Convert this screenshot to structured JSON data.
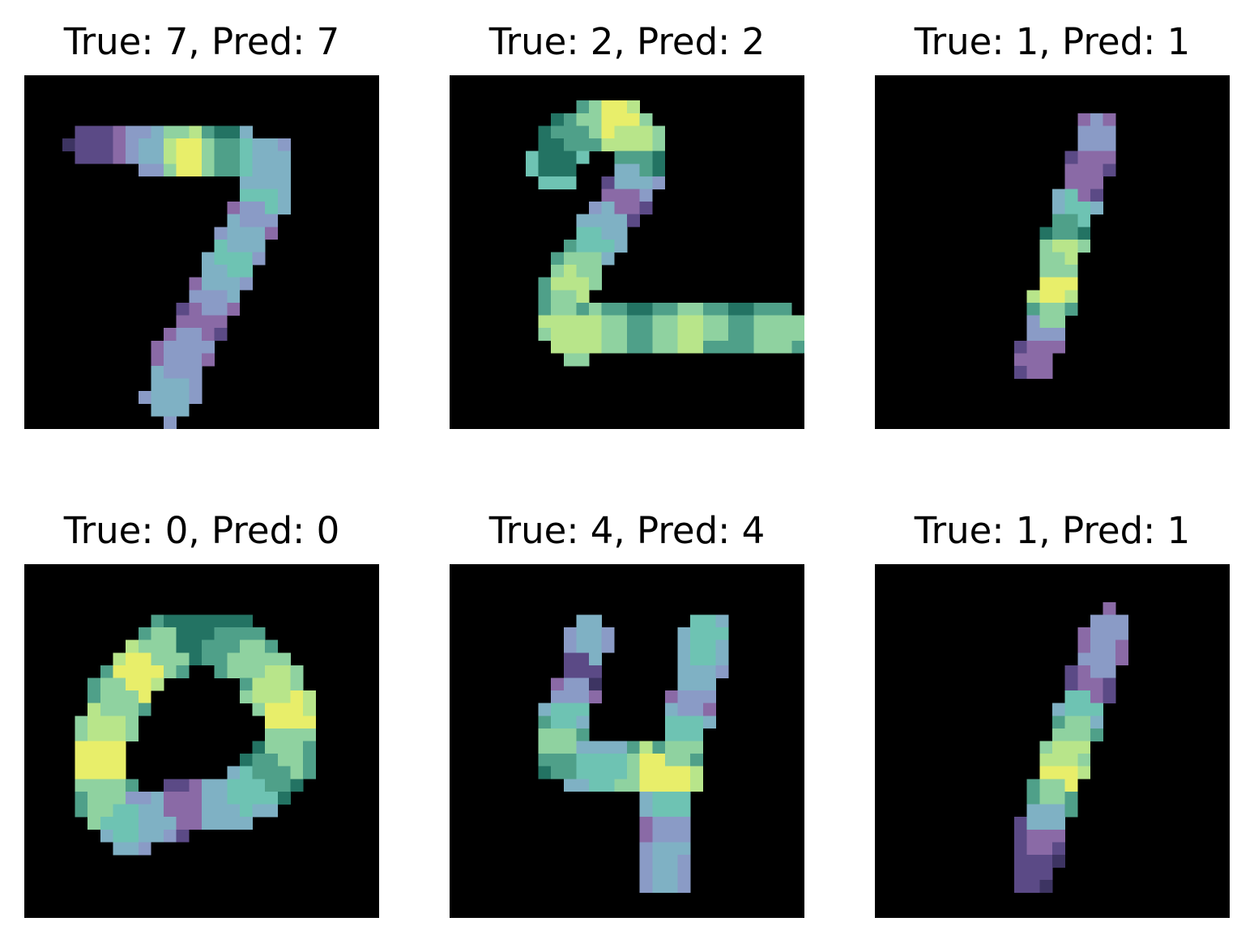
{
  "figure": {
    "panels": [
      {
        "title": "True: 7, Pred: 7",
        "true_label": 7,
        "pred_label": 7,
        "digit": "seven"
      },
      {
        "title": "True: 2, Pred: 2",
        "true_label": 2,
        "pred_label": 2,
        "digit": "two"
      },
      {
        "title": "True: 1, Pred: 1",
        "true_label": 1,
        "pred_label": 1,
        "digit": "one"
      },
      {
        "title": "True: 0, Pred: 0",
        "true_label": 0,
        "pred_label": 0,
        "digit": "zero"
      },
      {
        "title": "True: 4, Pred: 4",
        "true_label": 4,
        "pred_label": 4,
        "digit": "four"
      },
      {
        "title": "True: 1, Pred: 1",
        "true_label": 1,
        "pred_label": 1,
        "digit": "one-b"
      }
    ],
    "image_background": "#000000",
    "palette": [
      "#1e2a4a",
      "#3d3462",
      "#5b4a86",
      "#8a6aa6",
      "#8a9bc6",
      "#7fb1c4",
      "#6ec3b3",
      "#237363",
      "#4fa089",
      "#8fd2a0",
      "#b8e58a",
      "#e8ee6a"
    ]
  }
}
